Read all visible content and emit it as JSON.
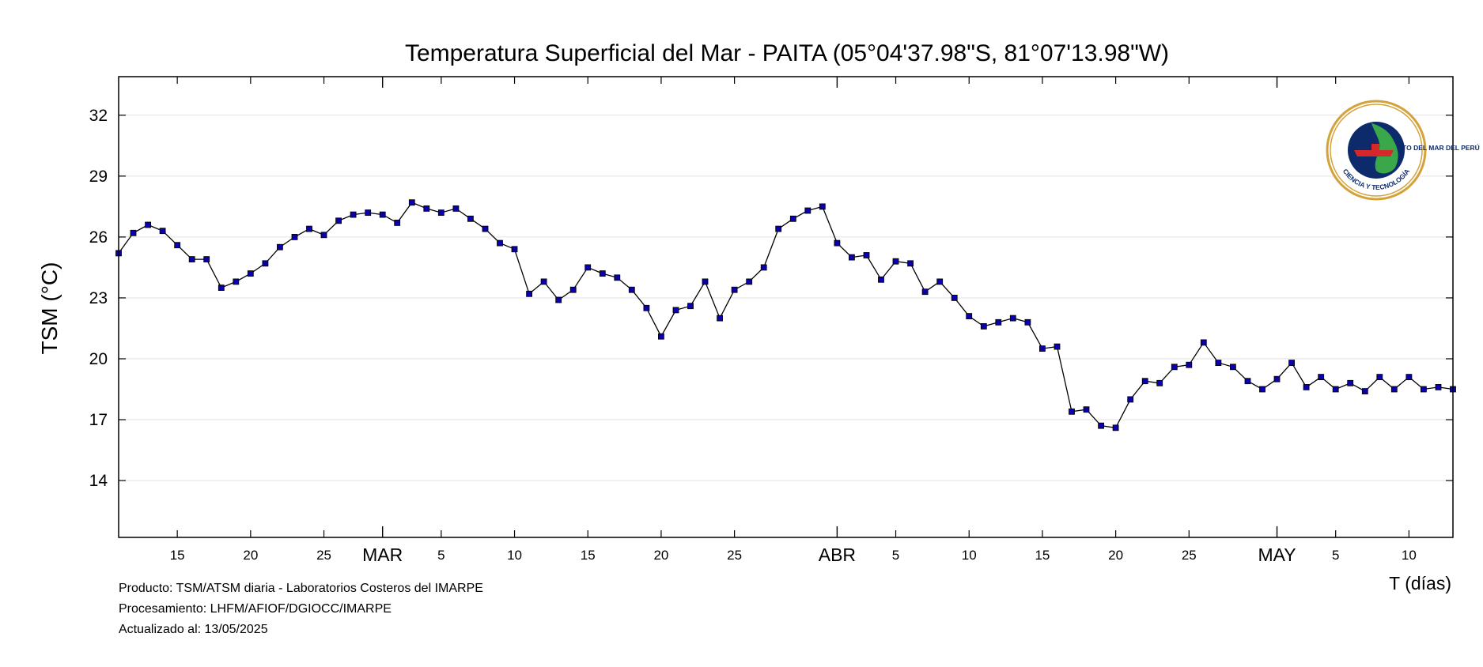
{
  "chart_data": {
    "type": "line",
    "title": "Temperatura Superficial del Mar - PAITA (05°04'37.98\"S, 81°07'13.98\"W)",
    "ylabel": "TSM (°C)",
    "xlabel": "T (días)",
    "ylim": [
      11.2,
      33.9
    ],
    "yticks": [
      14,
      17,
      20,
      23,
      26,
      29,
      32
    ],
    "grid": true,
    "x_day_ticks": [
      {
        "day": 15,
        "label": "15"
      },
      {
        "day": 20,
        "label": "20"
      },
      {
        "day": 25,
        "label": "25"
      },
      {
        "day": 33,
        "label": "5"
      },
      {
        "day": 38,
        "label": "10"
      },
      {
        "day": 43,
        "label": "15"
      },
      {
        "day": 48,
        "label": "20"
      },
      {
        "day": 53,
        "label": "25"
      },
      {
        "day": 64,
        "label": "5"
      },
      {
        "day": 69,
        "label": "10"
      },
      {
        "day": 74,
        "label": "15"
      },
      {
        "day": 79,
        "label": "20"
      },
      {
        "day": 84,
        "label": "25"
      },
      {
        "day": 94,
        "label": "5"
      },
      {
        "day": 99,
        "label": "10"
      }
    ],
    "x_month_ticks": [
      {
        "day": 29,
        "label": "MAR"
      },
      {
        "day": 60,
        "label": "ABR"
      },
      {
        "day": 90,
        "label": "MAY"
      }
    ],
    "series": [
      {
        "start_day": 11,
        "values": [
          25.2,
          26.2,
          26.6,
          26.3,
          25.6,
          24.9,
          24.9,
          23.5,
          23.8,
          24.2,
          24.7,
          25.5,
          26.0,
          26.4,
          26.1,
          26.8,
          27.1,
          27.2,
          27.1,
          26.7,
          27.7,
          27.4,
          27.2,
          27.4,
          26.9,
          26.4,
          25.7,
          25.4,
          23.2,
          23.8,
          22.9,
          23.4,
          24.5,
          24.2,
          24.0,
          23.4,
          22.5,
          21.1,
          22.4,
          22.6,
          23.8,
          22.0,
          23.4,
          23.8,
          24.5,
          26.4,
          26.9,
          27.3,
          27.5,
          25.7,
          25.0,
          25.1,
          23.9,
          24.8,
          24.7,
          23.3,
          23.8,
          23.0,
          22.1,
          21.6,
          21.8,
          22.0,
          21.8,
          20.5,
          20.6,
          17.4,
          17.5,
          16.7,
          16.6,
          18.0,
          18.9,
          18.8,
          19.6,
          19.7,
          20.8,
          19.8,
          19.6,
          18.9,
          18.5,
          19.0,
          19.8,
          18.6,
          19.1,
          18.5,
          18.8,
          18.4,
          19.1,
          18.5,
          19.1,
          18.5,
          18.6,
          18.5
        ]
      }
    ],
    "colors": {
      "line": "#000000",
      "marker_fill": "#0b00a8",
      "marker_stroke": "#000000"
    }
  },
  "footer": {
    "producto": "Producto: TSM/ATSM diaria - Laboratorios Costeros del IMARPE",
    "procesamiento": "Procesamiento: LHFM/AFIOF/DGIOCC/IMARPE",
    "actualizado": "Actualizado al: 13/05/2025"
  },
  "logo": {
    "icon": "imarpe-seal-icon",
    "ring_text_top": "INSTITUTO DEL MAR DEL PERÚ",
    "ring_text_bottom": "CIENCIA Y TECNOLOGÍA",
    "colors": {
      "ring": "#d4a23a",
      "outer": "#ffffff",
      "inner": "#0d2a6b",
      "land": "#3aa84a",
      "ship": "#d62828"
    }
  }
}
